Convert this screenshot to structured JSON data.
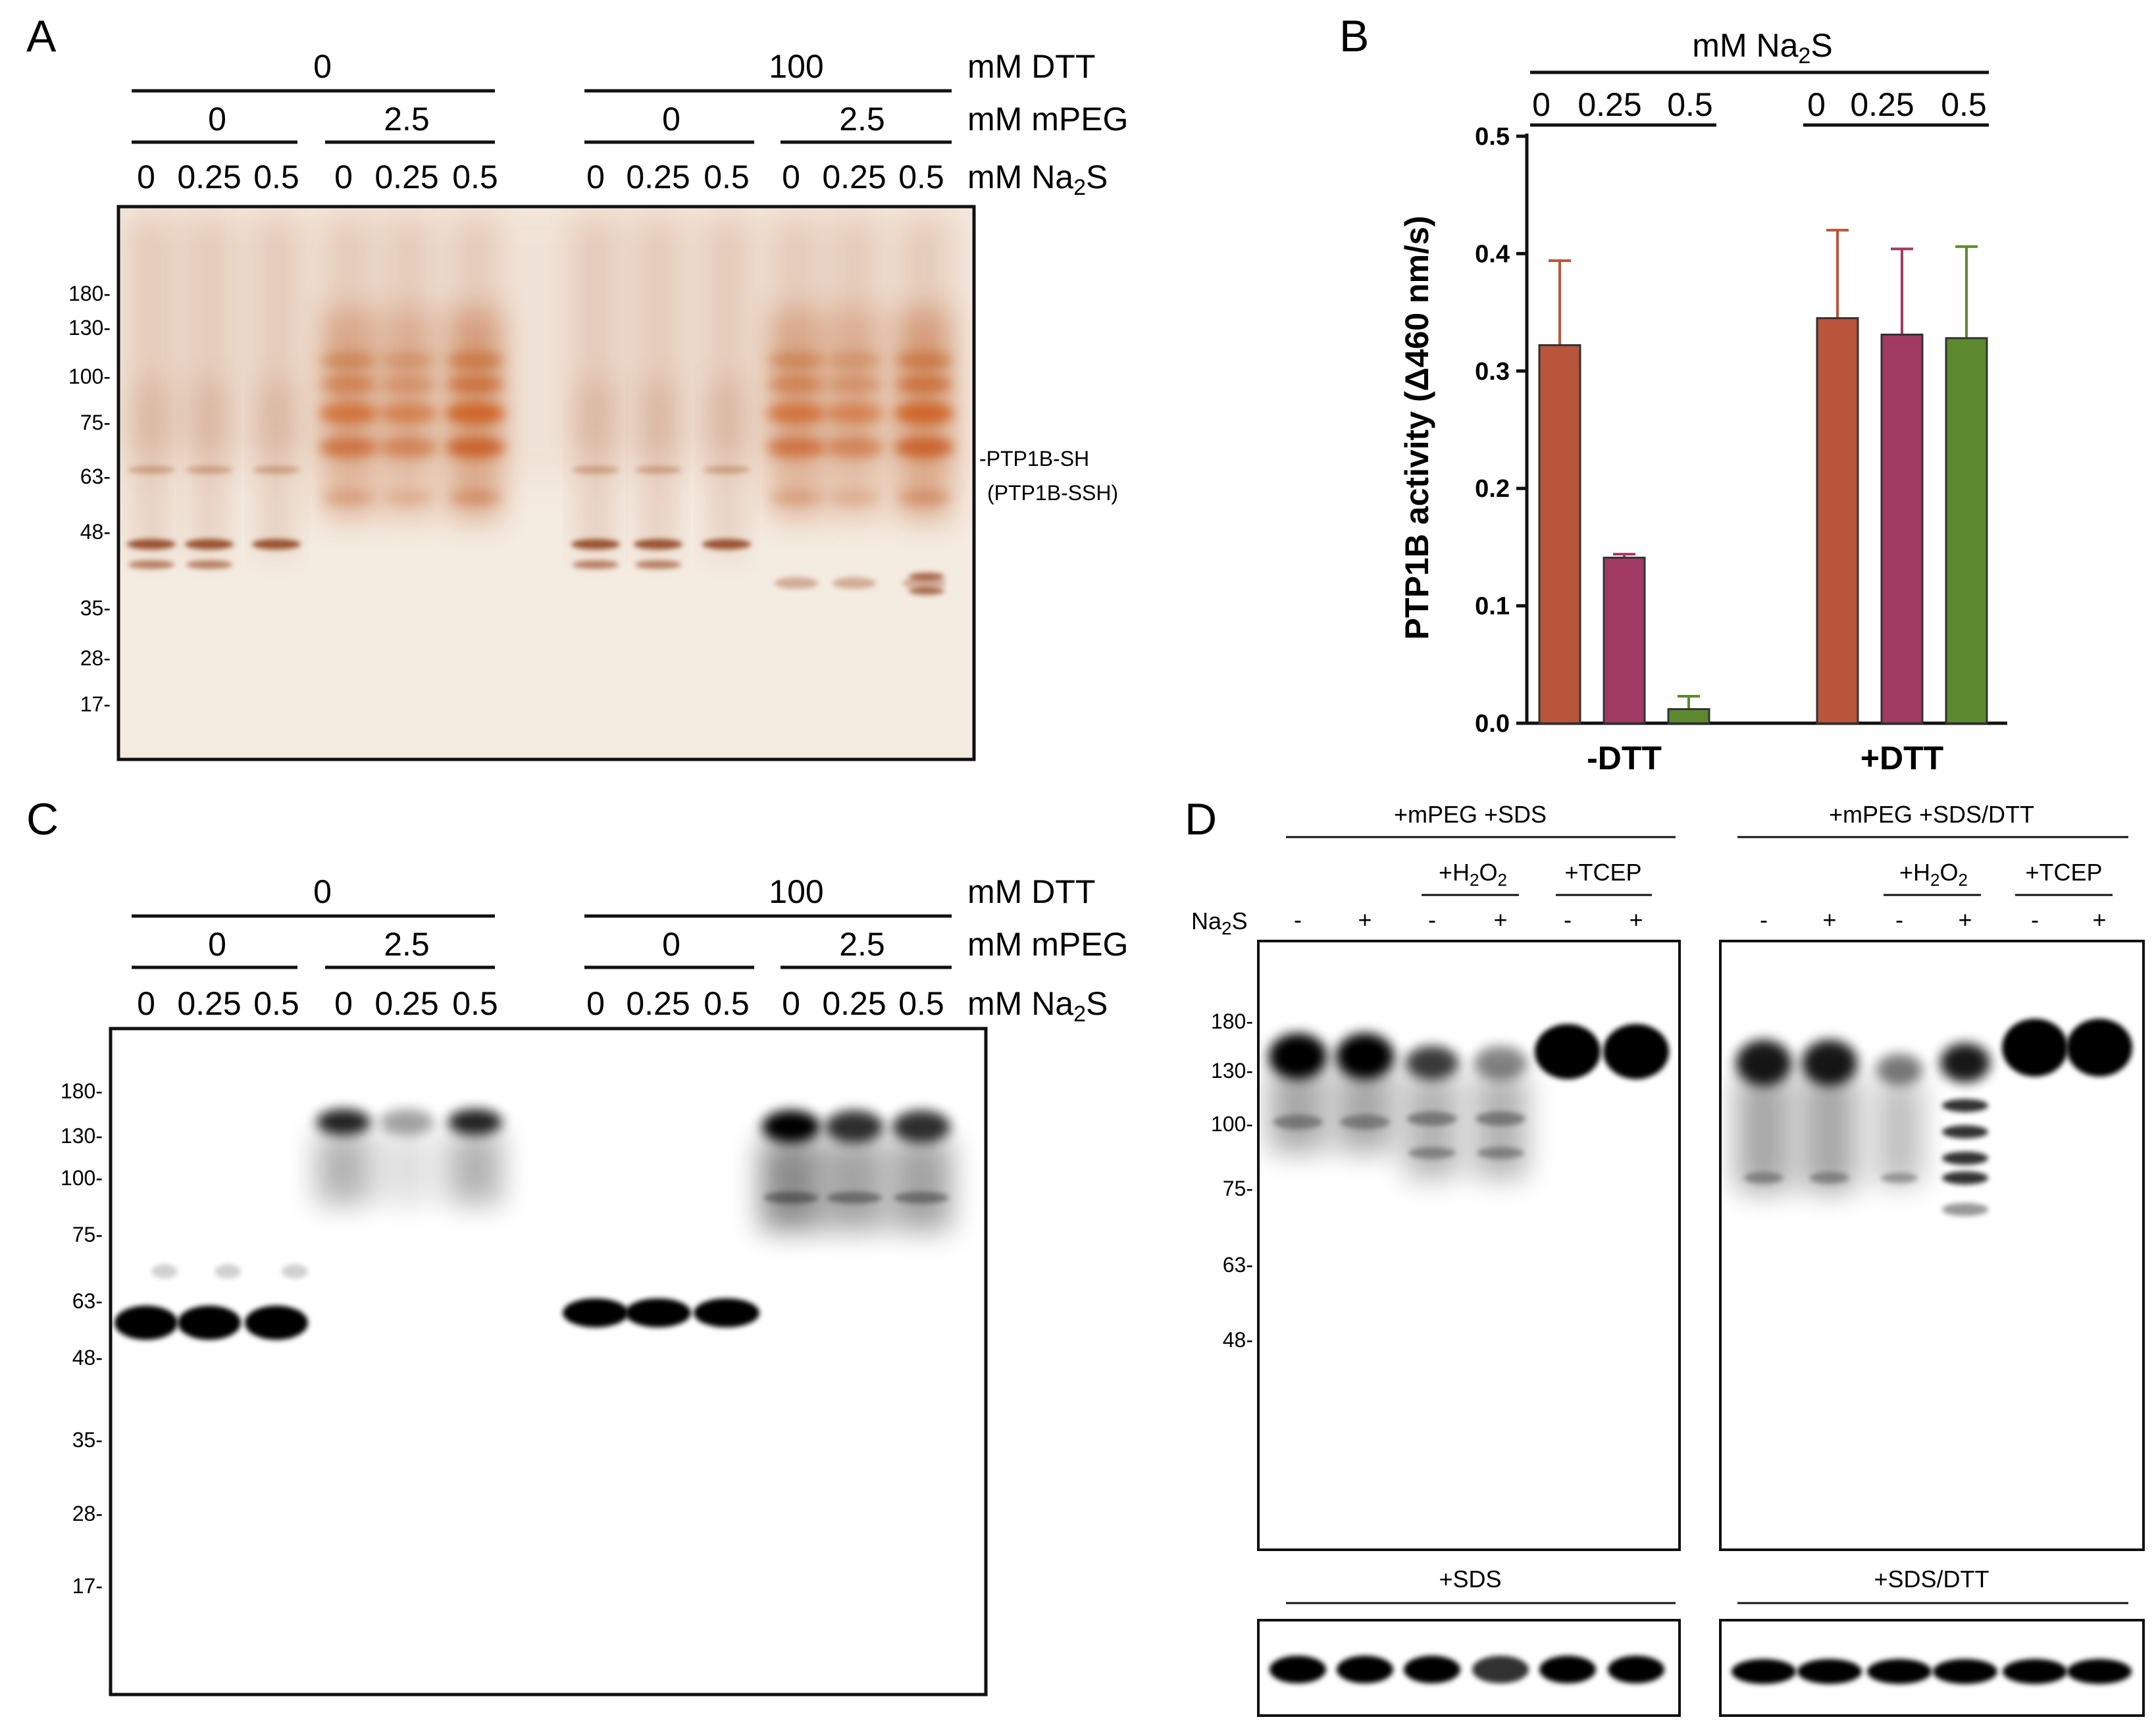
{
  "figure": {
    "panel_labels": [
      "A",
      "B",
      "C",
      "D"
    ],
    "colors": {
      "silver_stain_bg": "#f3e9df",
      "silver_band": "#b8541e",
      "blot_band": "#000000",
      "bar_na2s_0": "#b9553a",
      "bar_na2s_025": "#a13a63",
      "bar_na2s_05": "#5d8a2f"
    },
    "gel_AC": {
      "dtt_label": "mM DTT",
      "mpeg_label": "mM mPEG",
      "na2s_label": "mM Na",
      "na2s_sub": "2",
      "na2s_tail": "S",
      "dtt_values": [
        "0",
        "100"
      ],
      "mpeg_values": [
        "0",
        "2.5",
        "0",
        "2.5"
      ],
      "lane_values": [
        "0",
        "0.25",
        "0.5",
        "0",
        "0.25",
        "0.5",
        "0",
        "0.25",
        "0.5",
        "0",
        "0.25",
        "0.5"
      ],
      "mw_markers": [
        "180-",
        "130-",
        "100-",
        "75-",
        "63-",
        "48-",
        "35-",
        "28-",
        "17-"
      ]
    },
    "panel_A": {
      "band_annotation_1": "-PTP1B-SH",
      "band_annotation_2": "(PTP1B-SSH)"
    },
    "panel_D": {
      "top_left_header": "+mPEG +SDS",
      "top_right_header": "+mPEG +SDS/DTT",
      "h2o2_label": "+H",
      "h2o2_sub1": "2",
      "h2o2_mid": "O",
      "h2o2_sub2": "2",
      "tcep_label": "+TCEP",
      "na2s_row_label": "Na",
      "na2s_row_sub": "2",
      "na2s_row_tail": "S",
      "lane_signs": [
        "-",
        "+",
        "-",
        "+",
        "-",
        "+"
      ],
      "mw_markers": [
        "180-",
        "130-",
        "100-",
        "75-",
        "63-",
        "48-"
      ],
      "bottom_left_header": "+SDS",
      "bottom_right_header": "+SDS/DTT"
    }
  },
  "chart_data": {
    "type": "bar",
    "title": "mM Na2S",
    "title_main": "mM Na",
    "title_sub": "2",
    "title_tail": "S",
    "group_header_values": [
      "0",
      "0.25",
      "0.5"
    ],
    "categories": [
      "-DTT",
      "+DTT"
    ],
    "series": [
      {
        "name": "0",
        "values": [
          0.322,
          0.345
        ],
        "errors": [
          0.072,
          0.075
        ]
      },
      {
        "name": "0.25",
        "values": [
          0.141,
          0.331
        ],
        "errors": [
          0.003,
          0.073
        ]
      },
      {
        "name": "0.5",
        "values": [
          0.012,
          0.328
        ],
        "errors": [
          0.011,
          0.078
        ]
      }
    ],
    "ylabel": "PTP1B activity (Δ460 nm/s)",
    "yticks": [
      "0.0",
      "0.1",
      "0.2",
      "0.3",
      "0.4",
      "0.5"
    ],
    "ylim": [
      0,
      0.5
    ],
    "grid": false,
    "legend": "none"
  }
}
